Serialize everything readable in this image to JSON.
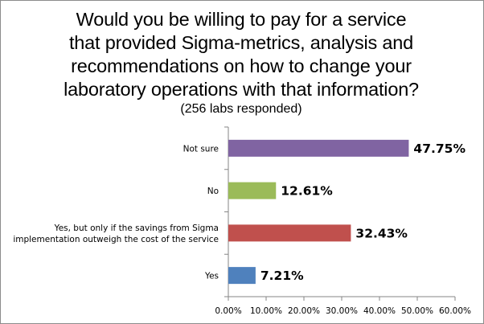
{
  "chart_data": {
    "type": "bar",
    "orientation": "horizontal",
    "title_lines": [
      "Would you be willing to pay for a service",
      "that provided Sigma-metrics, analysis and",
      "recommendations on how to change your",
      "laboratory operations with that information?"
    ],
    "subtitle": "(256 labs responded)",
    "categories": [
      [
        "Not sure"
      ],
      [
        "No"
      ],
      [
        "Yes, but only if the savings from Sigma",
        "implementation outweigh the cost of the service"
      ],
      [
        "Yes"
      ]
    ],
    "values": [
      47.75,
      12.61,
      32.43,
      7.21
    ],
    "data_labels": [
      "47.75%",
      "12.61%",
      "32.43%",
      "7.21%"
    ],
    "colors": [
      "#8064a2",
      "#9bbb59",
      "#c0504d",
      "#4f81bd"
    ],
    "xlim": [
      0,
      60
    ],
    "ticks": [
      "0.00%",
      "10.00%",
      "20.00%",
      "30.00%",
      "40.00%",
      "50.00%",
      "60.00%"
    ],
    "grid": false,
    "legend": "none",
    "xlabel": "",
    "ylabel": ""
  }
}
